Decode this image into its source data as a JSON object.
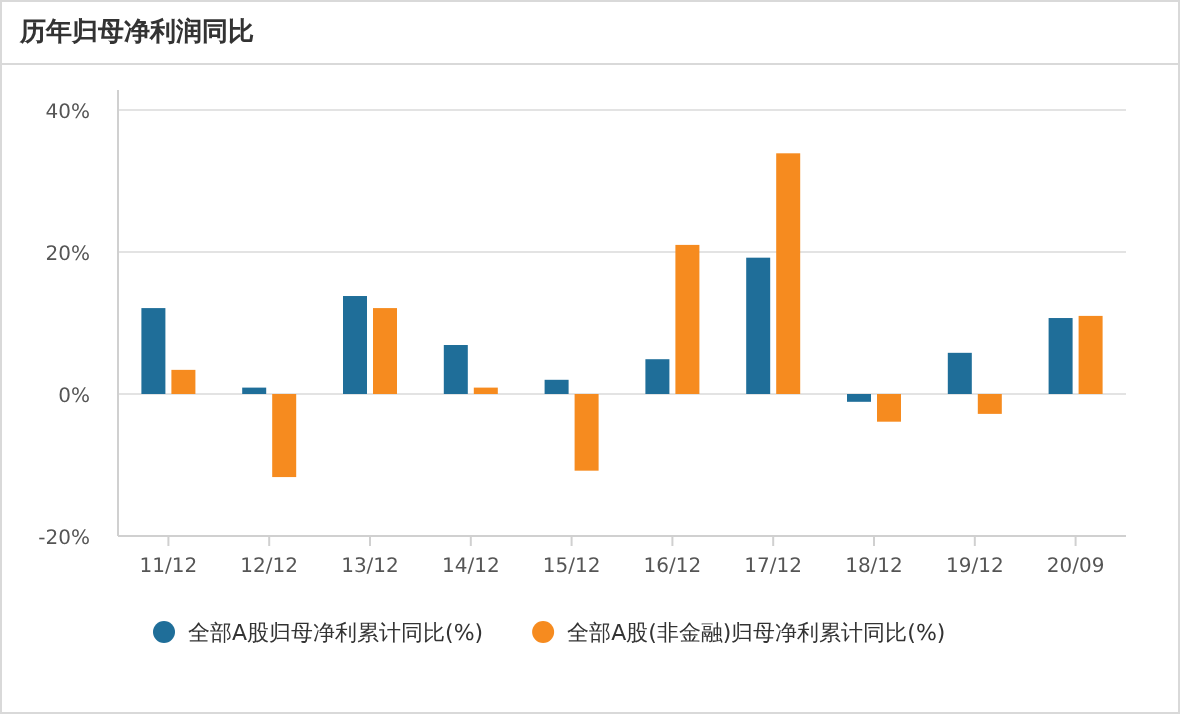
{
  "chart_data": {
    "type": "bar",
    "title": "历年归母净利润同比",
    "categories": [
      "11/12",
      "12/12",
      "13/12",
      "14/12",
      "15/12",
      "16/12",
      "17/12",
      "18/12",
      "19/12",
      "20/09"
    ],
    "series": [
      {
        "name": "全部A股归母净利累计同比(%)",
        "color": "#1f6e99",
        "values": [
          12.1,
          0.9,
          13.8,
          6.9,
          2.0,
          4.9,
          19.2,
          -1.1,
          5.8,
          10.7
        ]
      },
      {
        "name": "全部A股(非金融)归母净利累计同比(%)",
        "color": "#f68b1f",
        "values": [
          3.4,
          -11.7,
          12.1,
          0.9,
          -10.8,
          21.0,
          33.9,
          -3.9,
          -2.8,
          11.0
        ]
      }
    ],
    "ylim": [
      -20,
      40
    ],
    "yticks": [
      {
        "value": -20,
        "label": "-20%"
      },
      {
        "value": 0,
        "label": "0%"
      },
      {
        "value": 20,
        "label": "20%"
      },
      {
        "value": 40,
        "label": "40%"
      }
    ],
    "grid": "y",
    "legend": "bottom"
  }
}
